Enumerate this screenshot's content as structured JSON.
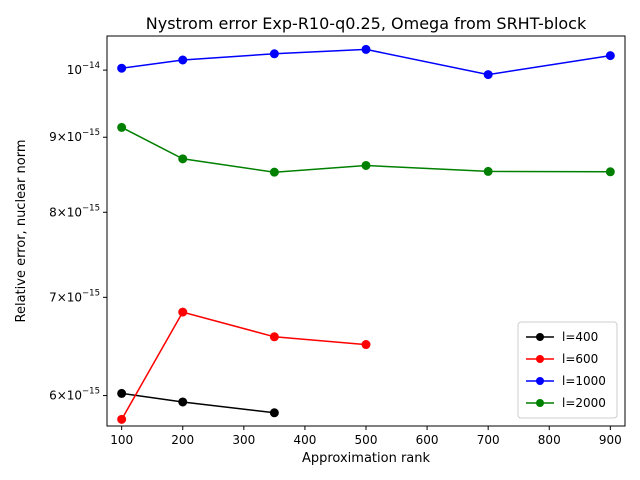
{
  "chart_data": {
    "type": "line",
    "title": "Nystrom error Exp-R10-q0.25, Omega from SRHT-block",
    "xlabel": "Approximation rank",
    "ylabel": "Relative error, nuclear norm",
    "yscale": "log",
    "xlim": [
      76,
      924
    ],
    "ylim": [
      5.72e-15,
      1.055e-14
    ],
    "xticks": [
      100,
      200,
      300,
      400,
      500,
      600,
      700,
      800,
      900
    ],
    "yticks": [
      {
        "value": 6e-15,
        "mantissa": "6",
        "base": "10",
        "exp": "−15"
      },
      {
        "value": 7e-15,
        "mantissa": "7",
        "base": "10",
        "exp": "−15"
      },
      {
        "value": 8e-15,
        "mantissa": "8",
        "base": "10",
        "exp": "−15"
      },
      {
        "value": 9e-15,
        "mantissa": "9",
        "base": "10",
        "exp": "−15"
      },
      {
        "value": 1e-14,
        "mantissa": "",
        "base": "10",
        "exp": "−14"
      }
    ],
    "legend_position": "lower-right",
    "series": [
      {
        "name": "l=400",
        "color": "#000000",
        "x": [
          100,
          200,
          350
        ],
        "y": [
          6.02e-15,
          5.94e-15,
          5.84e-15
        ]
      },
      {
        "name": "l=600",
        "color": "#ff0000",
        "x": [
          100,
          200,
          350,
          500
        ],
        "y": [
          5.78e-15,
          6.84e-15,
          6.58e-15,
          6.5e-15
        ]
      },
      {
        "name": "l=1000",
        "color": "#0000ff",
        "x": [
          100,
          200,
          350,
          500,
          700,
          900
        ],
        "y": [
          1.003e-14,
          1.016e-14,
          1.026e-14,
          1.033e-14,
          9.93e-15,
          1.023e-14
        ]
      },
      {
        "name": "l=2000",
        "color": "#008000",
        "x": [
          100,
          200,
          350,
          500,
          700,
          900
        ],
        "y": [
          9.14e-15,
          8.7e-15,
          8.52e-15,
          8.61e-15,
          8.53e-15,
          8.525e-15
        ]
      }
    ]
  }
}
